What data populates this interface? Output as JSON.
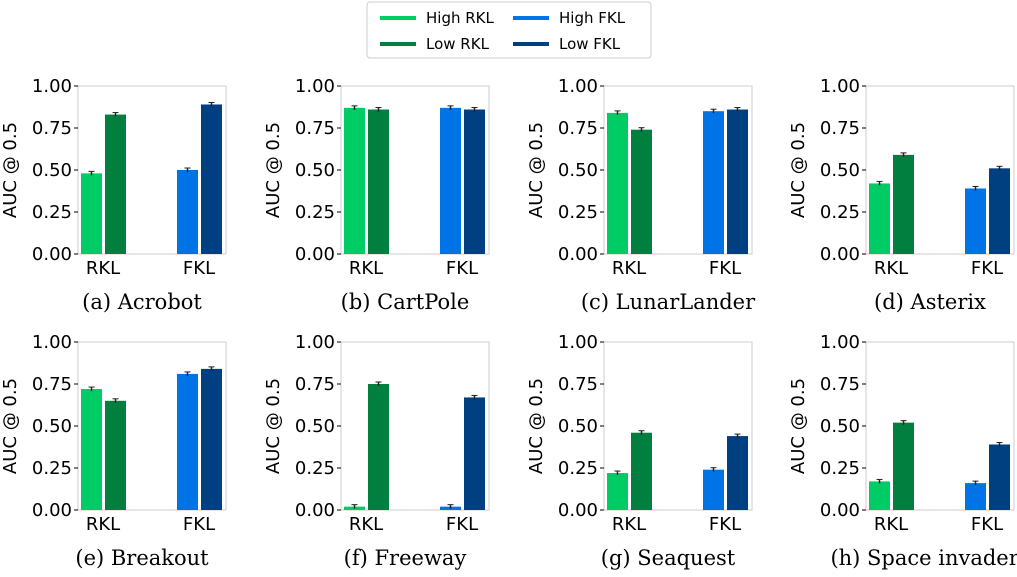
{
  "legend": {
    "entries": [
      {
        "label": "High RKL",
        "color": "#00cc66"
      },
      {
        "label": "Low RKL",
        "color": "#007f3f"
      },
      {
        "label": "High FKL",
        "color": "#0073e6"
      },
      {
        "label": "Low FKL",
        "color": "#003f80"
      }
    ]
  },
  "colors": {
    "high_rkl": "#00cc66",
    "low_rkl": "#007f3f",
    "high_fkl": "#0073e6",
    "low_fkl": "#003f80",
    "axis": "#cccccc"
  },
  "chart_data": [
    {
      "type": "bar",
      "caption": "(a) Acrobot",
      "ylabel": "AUC @ 0.5",
      "categories": [
        "RKL",
        "FKL"
      ],
      "ylim": [
        0,
        1.0
      ],
      "yticks": [
        "0.00",
        "0.25",
        "0.50",
        "0.75",
        "1.00"
      ],
      "series": [
        {
          "name": "High RKL",
          "values": [
            0.48,
            null
          ]
        },
        {
          "name": "Low RKL",
          "values": [
            0.83,
            null
          ]
        },
        {
          "name": "High FKL",
          "values": [
            null,
            0.5
          ]
        },
        {
          "name": "Low FKL",
          "values": [
            null,
            0.89
          ]
        }
      ]
    },
    {
      "type": "bar",
      "caption": "(b) CartPole",
      "ylabel": "AUC @ 0.5",
      "categories": [
        "RKL",
        "FKL"
      ],
      "ylim": [
        0,
        1.0
      ],
      "yticks": [
        "0.00",
        "0.25",
        "0.50",
        "0.75",
        "1.00"
      ],
      "series": [
        {
          "name": "High RKL",
          "values": [
            0.87,
            null
          ]
        },
        {
          "name": "Low RKL",
          "values": [
            0.86,
            null
          ]
        },
        {
          "name": "High FKL",
          "values": [
            null,
            0.87
          ]
        },
        {
          "name": "Low FKL",
          "values": [
            null,
            0.86
          ]
        }
      ]
    },
    {
      "type": "bar",
      "caption": "(c) LunarLander",
      "ylabel": "AUC @ 0.5",
      "categories": [
        "RKL",
        "FKL"
      ],
      "ylim": [
        0,
        1.0
      ],
      "yticks": [
        "0.00",
        "0.25",
        "0.50",
        "0.75",
        "1.00"
      ],
      "series": [
        {
          "name": "High RKL",
          "values": [
            0.84,
            null
          ]
        },
        {
          "name": "Low RKL",
          "values": [
            0.74,
            null
          ]
        },
        {
          "name": "High FKL",
          "values": [
            null,
            0.85
          ]
        },
        {
          "name": "Low FKL",
          "values": [
            null,
            0.86
          ]
        }
      ]
    },
    {
      "type": "bar",
      "caption": "(d) Asterix",
      "ylabel": "AUC @ 0.5",
      "categories": [
        "RKL",
        "FKL"
      ],
      "ylim": [
        0,
        1.0
      ],
      "yticks": [
        "0.00",
        "0.25",
        "0.50",
        "0.75",
        "1.00"
      ],
      "series": [
        {
          "name": "High RKL",
          "values": [
            0.42,
            null
          ]
        },
        {
          "name": "Low RKL",
          "values": [
            0.59,
            null
          ]
        },
        {
          "name": "High FKL",
          "values": [
            null,
            0.39
          ]
        },
        {
          "name": "Low FKL",
          "values": [
            null,
            0.51
          ]
        }
      ]
    },
    {
      "type": "bar",
      "caption": "(e) Breakout",
      "ylabel": "AUC @ 0.5",
      "categories": [
        "RKL",
        "FKL"
      ],
      "ylim": [
        0,
        1.0
      ],
      "yticks": [
        "0.00",
        "0.25",
        "0.50",
        "0.75",
        "1.00"
      ],
      "series": [
        {
          "name": "High RKL",
          "values": [
            0.72,
            null
          ]
        },
        {
          "name": "Low RKL",
          "values": [
            0.65,
            null
          ]
        },
        {
          "name": "High FKL",
          "values": [
            null,
            0.81
          ]
        },
        {
          "name": "Low FKL",
          "values": [
            null,
            0.84
          ]
        }
      ]
    },
    {
      "type": "bar",
      "caption": "(f) Freeway",
      "ylabel": "AUC @ 0.5",
      "categories": [
        "RKL",
        "FKL"
      ],
      "ylim": [
        0,
        1.0
      ],
      "yticks": [
        "0.00",
        "0.25",
        "0.50",
        "0.75",
        "1.00"
      ],
      "series": [
        {
          "name": "High RKL",
          "values": [
            0.02,
            null
          ]
        },
        {
          "name": "Low RKL",
          "values": [
            0.75,
            null
          ]
        },
        {
          "name": "High FKL",
          "values": [
            null,
            0.02
          ]
        },
        {
          "name": "Low FKL",
          "values": [
            null,
            0.67
          ]
        }
      ]
    },
    {
      "type": "bar",
      "caption": "(g) Seaquest",
      "ylabel": "AUC @ 0.5",
      "categories": [
        "RKL",
        "FKL"
      ],
      "ylim": [
        0,
        1.0
      ],
      "yticks": [
        "0.00",
        "0.25",
        "0.50",
        "0.75",
        "1.00"
      ],
      "series": [
        {
          "name": "High RKL",
          "values": [
            0.22,
            null
          ]
        },
        {
          "name": "Low RKL",
          "values": [
            0.46,
            null
          ]
        },
        {
          "name": "High FKL",
          "values": [
            null,
            0.24
          ]
        },
        {
          "name": "Low FKL",
          "values": [
            null,
            0.44
          ]
        }
      ]
    },
    {
      "type": "bar",
      "caption": "(h) Space invaders",
      "ylabel": "AUC @ 0.5",
      "categories": [
        "RKL",
        "FKL"
      ],
      "ylim": [
        0,
        1.0
      ],
      "yticks": [
        "0.00",
        "0.25",
        "0.50",
        "0.75",
        "1.00"
      ],
      "series": [
        {
          "name": "High RKL",
          "values": [
            0.17,
            null
          ]
        },
        {
          "name": "Low RKL",
          "values": [
            0.52,
            null
          ]
        },
        {
          "name": "High FKL",
          "values": [
            null,
            0.16
          ]
        },
        {
          "name": "Low FKL",
          "values": [
            null,
            0.39
          ]
        }
      ]
    }
  ]
}
